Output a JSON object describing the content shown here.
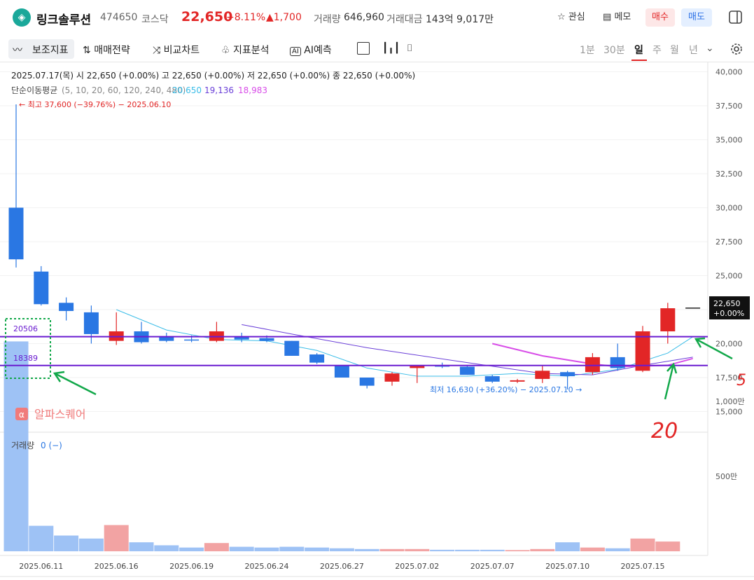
{
  "header": {
    "name": "링크솔루션",
    "code": "474650",
    "market": "코스닥",
    "price": "22,650",
    "change_pct": "+8.11%",
    "change_abs": "▲1,700",
    "volume_label": "거래량",
    "volume": "646,960",
    "amount_label": "거래대금",
    "amount": "143억 9,017만",
    "watch_label": "관심",
    "memo_label": "메모",
    "buy_label": "매수",
    "sell_label": "매도"
  },
  "toolbar": {
    "indicator_label": "보조지표",
    "strategy_label": "매매전략",
    "compare_label": "비교차트",
    "analysis_label": "지표분석",
    "ai_label": "AI예측",
    "periods": [
      "1분",
      "30분",
      "일",
      "주",
      "월",
      "년"
    ],
    "selected_period": "일"
  },
  "info": {
    "ohlc": "2025.07.17(목)  시 22,650 (+0.00%)   고 22,650 (+0.00%)   저 22,650 (+0.00%)   종 22,650 (+0.00%)",
    "ma_label": "단순이동평균",
    "ma_params": "(5, 10, 20, 60, 120, 240, 480)",
    "ma_values": [
      "20,650",
      "19,136",
      "18,983"
    ],
    "high_annot": "← 최고 37,600 (−39.76%) − 2025.06.10",
    "low_annot": "최저 16,630 (+36.20%) − 2025.07.10 →",
    "volume_label": "거래량",
    "volume_value": "0 (−)",
    "watermark": "알파스퀘어",
    "price_tag": "22,650",
    "price_tag_pct": "+0.00%"
  },
  "annotations": {
    "box_upper": "20506",
    "box_lower": "18389",
    "mark_5": "5",
    "mark_20": "20"
  },
  "colors": {
    "up": "#e22626",
    "down": "#2a77e3",
    "ma5": "#3bbde8",
    "ma10": "#6a3fd8",
    "ma20": "#d84ee8",
    "hline": "#6a1bd0"
  },
  "chart_data": {
    "type": "candlestick",
    "price_axis": {
      "ticks": [
        15000,
        17500,
        20000,
        22500,
        25000,
        27500,
        30000,
        32500,
        35000,
        37500,
        40000
      ]
    },
    "volume_axis": {
      "ticks": [
        "500만",
        "1,000만"
      ]
    },
    "date_ticks": [
      "2025.06.11",
      "2025.06.16",
      "2025.06.19",
      "2025.06.24",
      "2025.06.27",
      "2025.07.02",
      "2025.07.07",
      "2025.07.10",
      "2025.07.15"
    ],
    "candles": [
      {
        "o": 30000,
        "h": 37600,
        "l": 25600,
        "c": 26200,
        "v": 14000000
      },
      {
        "o": 25300,
        "h": 25700,
        "l": 22800,
        "c": 22900,
        "v": 1700000
      },
      {
        "o": 23000,
        "h": 23400,
        "l": 21700,
        "c": 22400,
        "v": 1050000
      },
      {
        "o": 22300,
        "h": 22800,
        "l": 20000,
        "c": 20700,
        "v": 850000
      },
      {
        "o": 20200,
        "h": 22300,
        "l": 19900,
        "c": 20900,
        "v": 1750000
      },
      {
        "o": 20900,
        "h": 21600,
        "l": 20000,
        "c": 20100,
        "v": 600000
      },
      {
        "o": 20500,
        "h": 20800,
        "l": 20100,
        "c": 20200,
        "v": 400000
      },
      {
        "o": 20300,
        "h": 20600,
        "l": 20100,
        "c": 20250,
        "v": 250000
      },
      {
        "o": 20200,
        "h": 21600,
        "l": 20100,
        "c": 20900,
        "v": 550000
      },
      {
        "o": 20500,
        "h": 20800,
        "l": 20100,
        "c": 20300,
        "v": 300000
      },
      {
        "o": 20400,
        "h": 20600,
        "l": 20100,
        "c": 20200,
        "v": 250000
      },
      {
        "o": 20200,
        "h": 20200,
        "l": 19100,
        "c": 19100,
        "v": 300000
      },
      {
        "o": 19200,
        "h": 19300,
        "l": 18500,
        "c": 18600,
        "v": 250000
      },
      {
        "o": 18400,
        "h": 18400,
        "l": 17500,
        "c": 17500,
        "v": 200000
      },
      {
        "o": 17500,
        "h": 17500,
        "l": 16700,
        "c": 16900,
        "v": 150000
      },
      {
        "o": 17200,
        "h": 17900,
        "l": 16900,
        "c": 17800,
        "v": 150000
      },
      {
        "o": 18200,
        "h": 18400,
        "l": 17100,
        "c": 18400,
        "v": 150000
      },
      {
        "o": 18400,
        "h": 18600,
        "l": 18200,
        "c": 18300,
        "v": 100000
      },
      {
        "o": 18300,
        "h": 18400,
        "l": 17700,
        "c": 17700,
        "v": 100000
      },
      {
        "o": 17600,
        "h": 17700,
        "l": 17100,
        "c": 17200,
        "v": 100000
      },
      {
        "o": 17200,
        "h": 17400,
        "l": 17100,
        "c": 17300,
        "v": 80000
      },
      {
        "o": 17400,
        "h": 18400,
        "l": 17100,
        "c": 18000,
        "v": 150000
      },
      {
        "o": 17900,
        "h": 18000,
        "l": 16630,
        "c": 17600,
        "v": 600000
      },
      {
        "o": 17900,
        "h": 19300,
        "l": 17700,
        "c": 19000,
        "v": 250000
      },
      {
        "o": 19000,
        "h": 20000,
        "l": 18000,
        "c": 18200,
        "v": 200000
      },
      {
        "o": 18000,
        "h": 21300,
        "l": 17900,
        "c": 20900,
        "v": 850000
      },
      {
        "o": 20900,
        "h": 23000,
        "l": 20000,
        "c": 22600,
        "v": 650000
      },
      {
        "o": 22650,
        "h": 22650,
        "l": 22650,
        "c": 22650,
        "v": 0
      }
    ],
    "ma5": [
      [
        4,
        22500
      ],
      [
        6,
        21000
      ],
      [
        8,
        20300
      ],
      [
        10,
        20200
      ],
      [
        12,
        19500
      ],
      [
        14,
        18200
      ],
      [
        16,
        17600
      ],
      [
        18,
        17600
      ],
      [
        20,
        17800
      ],
      [
        22,
        17600
      ],
      [
        24,
        18100
      ],
      [
        26,
        19300
      ],
      [
        27,
        20500
      ]
    ],
    "ma10": [
      [
        9,
        21400
      ],
      [
        11,
        20700
      ],
      [
        14,
        19700
      ],
      [
        18,
        18600
      ],
      [
        21,
        17800
      ],
      [
        23,
        17700
      ],
      [
        25,
        18400
      ],
      [
        27,
        19000
      ]
    ],
    "ma20": [
      [
        19,
        20000
      ],
      [
        21,
        19100
      ],
      [
        23,
        18500
      ],
      [
        24,
        18300
      ],
      [
        26,
        18400
      ],
      [
        27,
        18900
      ]
    ],
    "hlines": [
      20506,
      18389
    ]
  }
}
